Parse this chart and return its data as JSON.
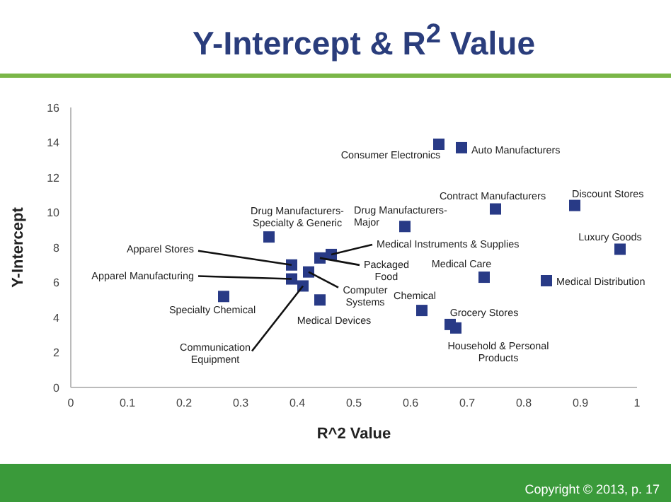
{
  "chart_data": {
    "type": "scatter",
    "title": "Y-Intercept & R$^{2}$ Value",
    "xlabel": "R^2 Value",
    "ylabel": "Y-Intercept",
    "x": [
      0.27,
      0.35,
      0.39,
      0.39,
      0.41,
      0.42,
      0.44,
      0.46,
      0.44,
      0.65,
      0.69,
      0.75,
      0.89,
      0.59,
      0.97,
      0.73,
      0.84,
      0.62,
      0.67,
      0.68
    ],
    "series": [
      {
        "color": "#283a86",
        "values": [
          5.2,
          8.6,
          7.0,
          6.2,
          5.8,
          6.6,
          7.4,
          7.6,
          5.0,
          13.9,
          13.7,
          10.2,
          10.4,
          9.2,
          7.9,
          6.3,
          6.1,
          4.4,
          3.6,
          3.4
        ]
      }
    ],
    "xlim": [
      0,
      1
    ],
    "xticks": [
      0,
      0.1,
      0.2,
      0.3,
      0.4,
      0.5,
      0.6,
      0.7,
      0.8,
      0.9,
      1
    ],
    "ylim": [
      0,
      16
    ],
    "yticks": [
      0,
      2,
      4,
      6,
      8,
      10,
      12,
      14,
      16
    ],
    "marker": "square",
    "grid": false,
    "annotations": [
      {
        "text": "Specialty Chemical",
        "x": 0.27,
        "y": 5.2
      },
      {
        "text": "Drug Manufacturers- Specialty & Generic",
        "x": 0.35,
        "y": 8.6
      },
      {
        "text": "Apparel Stores",
        "x": 0.39,
        "y": 7.0
      },
      {
        "text": "Apparel Manufacturing",
        "x": 0.39,
        "y": 6.2
      },
      {
        "text": "Communication Equipment",
        "x": 0.41,
        "y": 5.8
      },
      {
        "text": "Computer Systems",
        "x": 0.42,
        "y": 6.6
      },
      {
        "text": "Packaged Food",
        "x": 0.44,
        "y": 7.4
      },
      {
        "text": "Medical Instruments & Supplies",
        "x": 0.46,
        "y": 7.6
      },
      {
        "text": "Medical Devices",
        "x": 0.44,
        "y": 5.0
      },
      {
        "text": "Consumer Electronics",
        "x": 0.65,
        "y": 13.9
      },
      {
        "text": "Auto Manufacturers",
        "x": 0.69,
        "y": 13.7
      },
      {
        "text": "Contract Manufacturers",
        "x": 0.75,
        "y": 10.2
      },
      {
        "text": "Discount Stores",
        "x": 0.89,
        "y": 10.4
      },
      {
        "text": "Drug Manufacturers- Major",
        "x": 0.59,
        "y": 9.2
      },
      {
        "text": "Luxury Goods",
        "x": 0.97,
        "y": 7.9
      },
      {
        "text": "Medical Care",
        "x": 0.73,
        "y": 6.3
      },
      {
        "text": "Medical Distribution",
        "x": 0.84,
        "y": 6.1
      },
      {
        "text": "Chemical",
        "x": 0.62,
        "y": 4.4
      },
      {
        "text": "Grocery Stores",
        "x": 0.67,
        "y": 3.6
      },
      {
        "text": "Household & Personal Products",
        "x": 0.68,
        "y": 3.4
      },
      "Copyright © 2013, p. 17"
    ]
  }
}
